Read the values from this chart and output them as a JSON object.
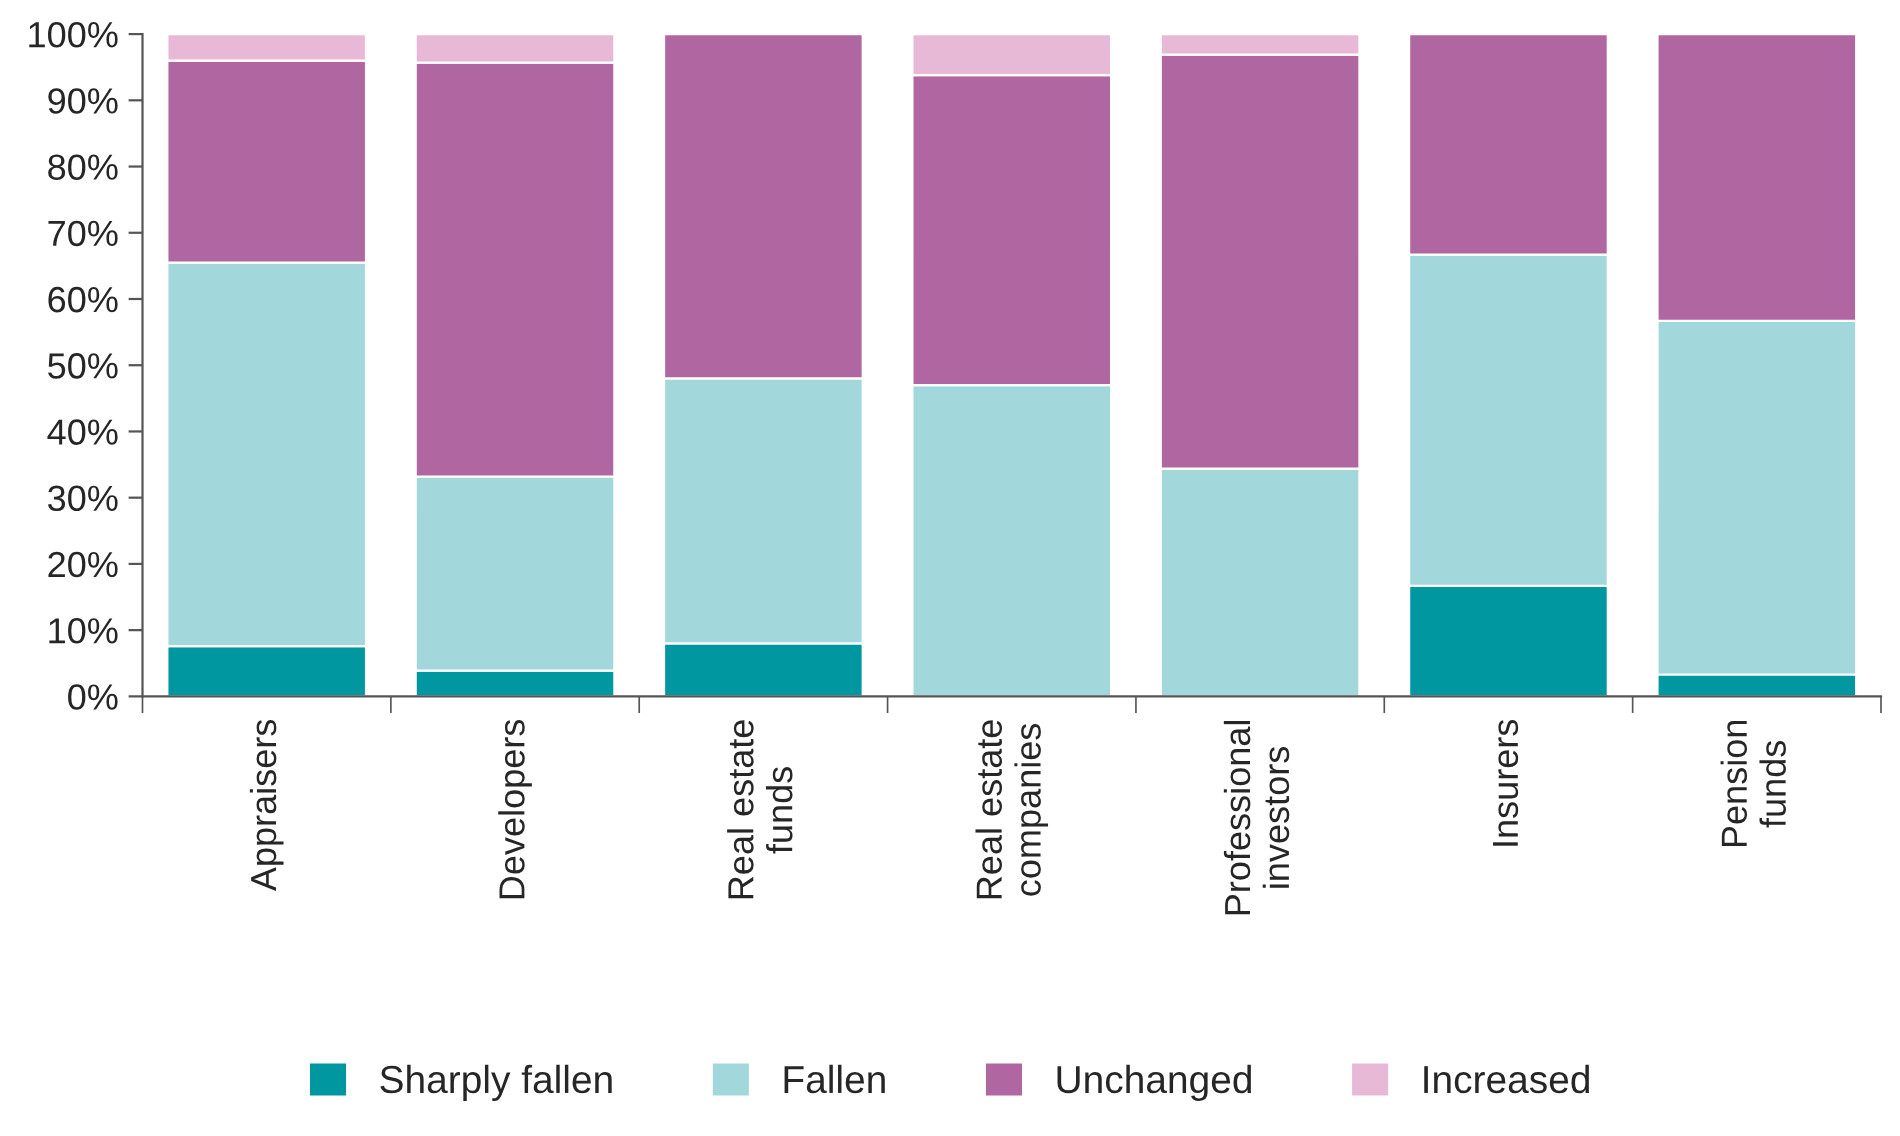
{
  "chart_data": {
    "type": "bar",
    "stacked": true,
    "categories": [
      "Appraisers",
      "Developers",
      "Real estate\nfunds",
      "Real estate\ncompanies",
      "Professional\ninvestors",
      "Insurers",
      "Pension\nfunds"
    ],
    "series": [
      {
        "name": "Sharply fallen",
        "color": "#0097a0",
        "values": [
          7.6,
          3.9,
          8,
          0,
          0,
          16.7,
          3.3
        ]
      },
      {
        "name": "Fallen",
        "color": "#a2d8db",
        "values": [
          57.9,
          29.3,
          40,
          47,
          34.4,
          50,
          53.4
        ]
      },
      {
        "name": "Unchanged",
        "color": "#b066a0",
        "values": [
          30.5,
          62.5,
          52,
          46.8,
          62.5,
          33.3,
          43.3
        ]
      },
      {
        "name": "Increased",
        "color": "#e8b9d6",
        "values": [
          4,
          4.3,
          0,
          6.2,
          3.1,
          0,
          0
        ]
      }
    ],
    "ylim": [
      0,
      100
    ],
    "yticks": [
      {
        "value": 0,
        "label": "0%"
      },
      {
        "value": 10,
        "label": "10%"
      },
      {
        "value": 20,
        "label": "20%"
      },
      {
        "value": 30,
        "label": "30%"
      },
      {
        "value": 40,
        "label": "40%"
      },
      {
        "value": 50,
        "label": "50%"
      },
      {
        "value": 60,
        "label": "60%"
      },
      {
        "value": 70,
        "label": "70%"
      },
      {
        "value": 80,
        "label": "80%"
      },
      {
        "value": 90,
        "label": "90%"
      },
      {
        "value": 100,
        "label": "100%"
      }
    ],
    "grid": false,
    "legend": "bottom"
  }
}
